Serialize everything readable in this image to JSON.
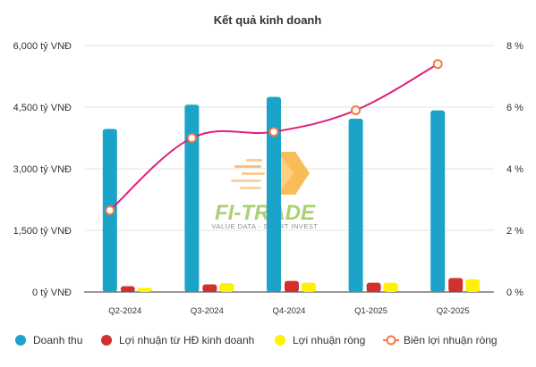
{
  "chart_data": {
    "type": "bar",
    "title": "Kết quả kinh doanh",
    "categories": [
      "Q2-2024",
      "Q3-2024",
      "Q4-2024",
      "Q1-2025",
      "Q2-2025"
    ],
    "y_left": {
      "ticks": [
        "0 tỷ VNĐ",
        "1,500 tỷ VNĐ",
        "3,000 tỷ VNĐ",
        "4,500 tỷ VNĐ",
        "6,000 tỷ VNĐ"
      ],
      "range": [
        0,
        6000
      ]
    },
    "y_right": {
      "ticks": [
        "0 %",
        "2 %",
        "4 %",
        "6 %",
        "8 %"
      ],
      "range": [
        0,
        8
      ]
    },
    "grid": true,
    "legend_position": "bottom",
    "series": [
      {
        "name": "Doanh thu",
        "kind": "bar",
        "axis": "left",
        "color": "#1BA3C9",
        "values": [
          3970,
          4560,
          4750,
          4220,
          4420
        ]
      },
      {
        "name": "Lợi nhuận từ HĐ kinh doanh",
        "kind": "bar",
        "axis": "left",
        "color": "#D32F2F",
        "values": [
          140,
          185,
          270,
          225,
          340
        ]
      },
      {
        "name": "Lợi nhuận ròng",
        "kind": "bar",
        "axis": "left",
        "color": "#FFF200",
        "values": [
          100,
          215,
          225,
          225,
          310
        ]
      },
      {
        "name": "Biên lợi nhuận ròng",
        "kind": "line",
        "axis": "right",
        "color": "#E0207A",
        "marker_color": "#F07A4A",
        "values": [
          2.65,
          5.0,
          5.2,
          5.9,
          7.4
        ]
      }
    ]
  },
  "watermark": {
    "brand": "FI-TRADE",
    "tagline": "VALUE DATA - SMART INVEST"
  }
}
